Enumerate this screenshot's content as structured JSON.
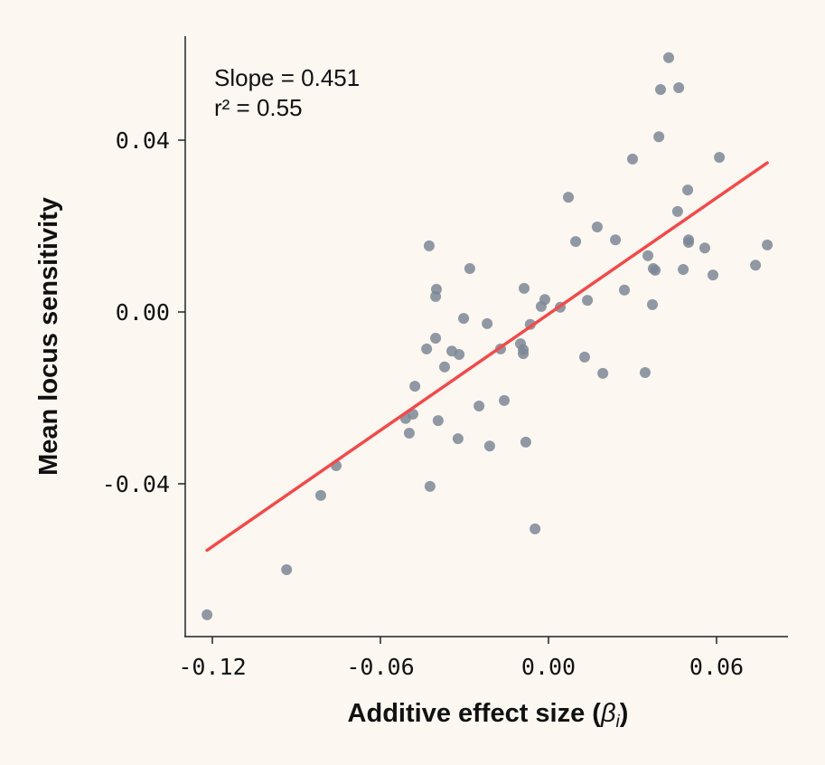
{
  "chart_data": {
    "type": "scatter",
    "xlabel_text": "Additive effect size",
    "xlabel_symbol": "β",
    "xlabel_subscript": "i",
    "ylabel": "Mean locus sensitivity",
    "xlim": [
      -0.13,
      0.0855
    ],
    "ylim": [
      -0.0754,
      0.0642
    ],
    "xticks": [
      -0.12,
      -0.06,
      0.0,
      0.06
    ],
    "xtick_labels": [
      "-0.12",
      "-0.06",
      "0.00",
      "0.06"
    ],
    "yticks": [
      -0.04,
      0.0,
      0.04
    ],
    "ytick_labels": [
      "-0.04",
      "0.00",
      "0.04"
    ],
    "grid": false,
    "annotations": {
      "slope": "Slope = 0.451",
      "r2": "r² = 0.55"
    },
    "fit": {
      "slope": 0.451,
      "intercept": -0.0005,
      "x_range": [
        -0.1219,
        0.0781
      ]
    },
    "colors": {
      "points": "#7d8796",
      "fit_line": "#f04b4b",
      "background": "#fcf7f1"
    },
    "points": [
      [
        -0.1219,
        -0.0705
      ],
      [
        -0.0935,
        -0.06
      ],
      [
        -0.0813,
        -0.0427
      ],
      [
        -0.0758,
        -0.0358
      ],
      [
        -0.0423,
        -0.0406
      ],
      [
        -0.051,
        -0.0248
      ],
      [
        -0.0497,
        -0.0282
      ],
      [
        -0.0484,
        -0.0238
      ],
      [
        -0.0477,
        -0.0173
      ],
      [
        -0.0435,
        -0.0086
      ],
      [
        -0.0426,
        0.0154
      ],
      [
        -0.0403,
        -0.0061
      ],
      [
        -0.0403,
        0.0036
      ],
      [
        -0.04,
        0.0053
      ],
      [
        -0.0394,
        -0.0253
      ],
      [
        -0.0371,
        -0.0128
      ],
      [
        -0.0345,
        -0.0091
      ],
      [
        -0.0323,
        -0.0295
      ],
      [
        -0.0319,
        -0.0099
      ],
      [
        -0.0303,
        -0.0015
      ],
      [
        -0.0281,
        0.0101
      ],
      [
        -0.0248,
        -0.0219
      ],
      [
        -0.0219,
        -0.0027
      ],
      [
        -0.021,
        -0.0312
      ],
      [
        -0.0171,
        -0.0086
      ],
      [
        -0.0158,
        -0.0206
      ],
      [
        -0.01,
        -0.0074
      ],
      [
        -0.009,
        -0.0097
      ],
      [
        -0.009,
        -0.0088
      ],
      [
        -0.0087,
        0.0055
      ],
      [
        -0.0081,
        -0.0303
      ],
      [
        -0.0065,
        -0.0029
      ],
      [
        -0.0048,
        -0.0505
      ],
      [
        -0.0026,
        0.0013
      ],
      [
        -0.0013,
        0.0029
      ],
      [
        0.0042,
        0.0011
      ],
      [
        0.0071,
        0.0267
      ],
      [
        0.0097,
        0.0164
      ],
      [
        0.0129,
        -0.0105
      ],
      [
        0.0139,
        0.0027
      ],
      [
        0.0174,
        0.0198
      ],
      [
        0.0194,
        -0.0143
      ],
      [
        0.0239,
        0.0168
      ],
      [
        0.0271,
        0.0051
      ],
      [
        0.03,
        0.0356
      ],
      [
        0.0345,
        -0.0141
      ],
      [
        0.0355,
        0.0131
      ],
      [
        0.0371,
        0.0017
      ],
      [
        0.0374,
        0.0101
      ],
      [
        0.0381,
        0.0097
      ],
      [
        0.0394,
        0.0408
      ],
      [
        0.04,
        0.0518
      ],
      [
        0.0429,
        0.0592
      ],
      [
        0.0461,
        0.0234
      ],
      [
        0.0465,
        0.0522
      ],
      [
        0.0481,
        0.0099
      ],
      [
        0.0497,
        0.0284
      ],
      [
        0.05,
        0.0168
      ],
      [
        0.05,
        0.0162
      ],
      [
        0.0558,
        0.0149
      ],
      [
        0.0587,
        0.0086
      ],
      [
        0.061,
        0.036
      ],
      [
        0.0739,
        0.0109
      ],
      [
        0.0781,
        0.0156
      ]
    ]
  }
}
